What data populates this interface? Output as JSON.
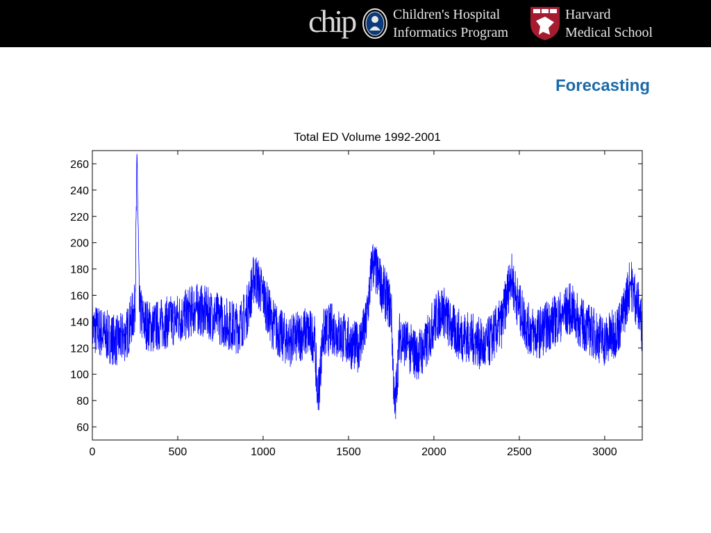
{
  "header": {
    "chip_logo": "chip",
    "chip_line1": "Children's Hospital",
    "chip_line2": "Informatics Program",
    "hms_line1": "Harvard",
    "hms_line2": "Medical School"
  },
  "slide": {
    "title": "Forecasting",
    "title_color": "#1c6aa8",
    "banner_color": "#000000"
  },
  "chart_data": {
    "type": "line",
    "title": "Total ED Volume 1992-2001",
    "xlabel": "",
    "ylabel": "",
    "xlim": [
      0,
      3220
    ],
    "ylim": [
      50,
      270
    ],
    "xticks": [
      0,
      500,
      1000,
      1500,
      2000,
      2500,
      3000
    ],
    "yticks": [
      60,
      80,
      100,
      120,
      140,
      160,
      180,
      200,
      220,
      240,
      260
    ],
    "grid": false,
    "line_color": "#0000ff",
    "series": [
      {
        "x": [
          0,
          50,
          100,
          150,
          200,
          250,
          262,
          275,
          300,
          350,
          400,
          450,
          500,
          550,
          600,
          650,
          700,
          750,
          800,
          850,
          900,
          950,
          1000,
          1050,
          1100,
          1150,
          1200,
          1250,
          1300,
          1320,
          1350,
          1400,
          1450,
          1500,
          1550,
          1600,
          1640,
          1700,
          1750,
          1770,
          1800,
          1850,
          1900,
          1950,
          2000,
          2050,
          2100,
          2150,
          2200,
          2250,
          2300,
          2350,
          2400,
          2450,
          2500,
          2550,
          2600,
          2650,
          2700,
          2750,
          2800,
          2850,
          2900,
          2950,
          3000,
          3050,
          3100,
          3150,
          3200,
          3220
        ],
        "values": [
          135,
          132,
          128,
          125,
          130,
          150,
          265,
          150,
          140,
          135,
          138,
          140,
          142,
          145,
          150,
          148,
          145,
          142,
          138,
          135,
          145,
          175,
          160,
          140,
          130,
          125,
          128,
          132,
          128,
          80,
          130,
          135,
          130,
          125,
          120,
          135,
          185,
          165,
          150,
          70,
          130,
          120,
          115,
          120,
          140,
          150,
          135,
          130,
          128,
          125,
          120,
          130,
          140,
          175,
          150,
          135,
          130,
          135,
          140,
          145,
          150,
          140,
          135,
          130,
          125,
          130,
          140,
          170,
          150,
          135
        ]
      }
    ]
  }
}
